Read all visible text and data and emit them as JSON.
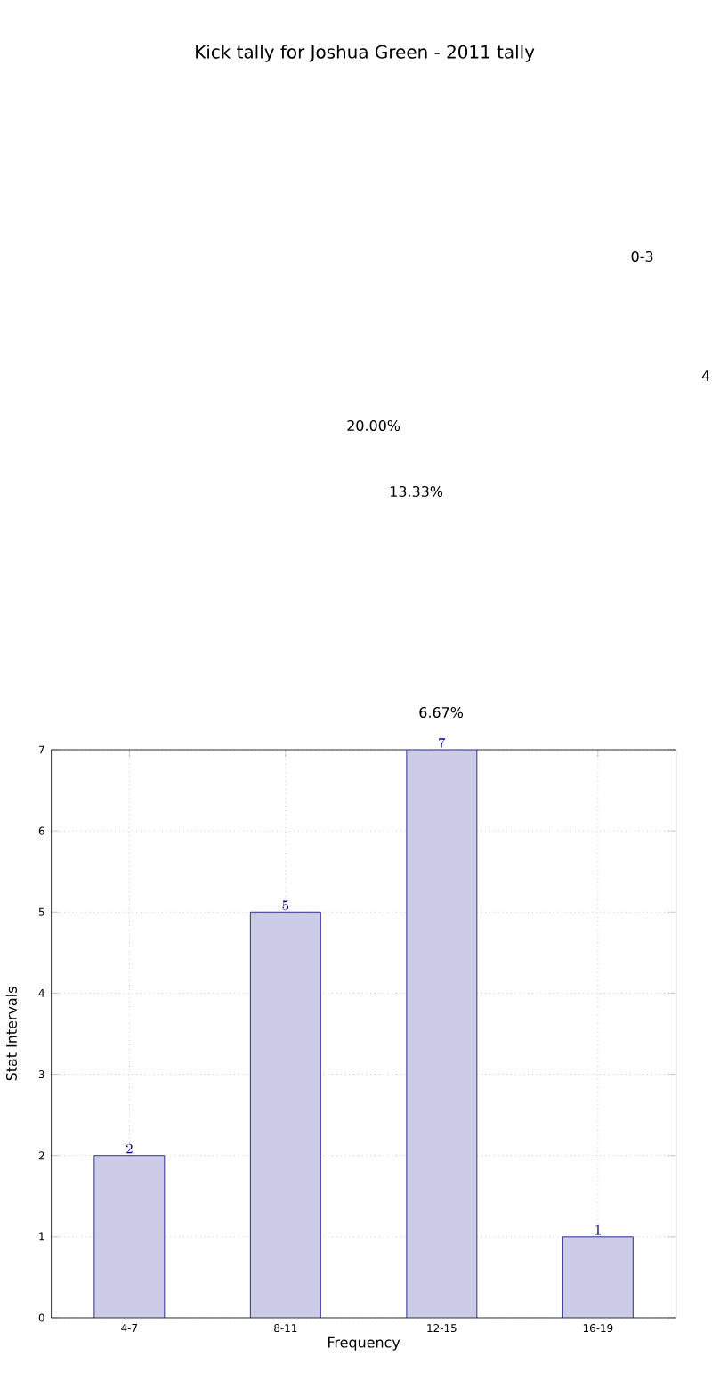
{
  "chart_data": {
    "type": "bar",
    "title": "Kick tally for Joshua Green - 2011 tally",
    "xlabel": "Frequency",
    "ylabel": "Stat Intervals",
    "categories": [
      "4-7",
      "8-11",
      "12-15",
      "16-19"
    ],
    "values": [
      2,
      5,
      7,
      1
    ],
    "color": "#ccccE6",
    "ylim": [
      0,
      7
    ],
    "yticks": [
      0,
      1,
      2,
      3,
      4,
      5,
      6,
      7
    ],
    "grid": true,
    "data_labels": true,
    "annotations": [
      "0-3",
      "4",
      "20.00%",
      "13.33%",
      "6.67%"
    ]
  }
}
